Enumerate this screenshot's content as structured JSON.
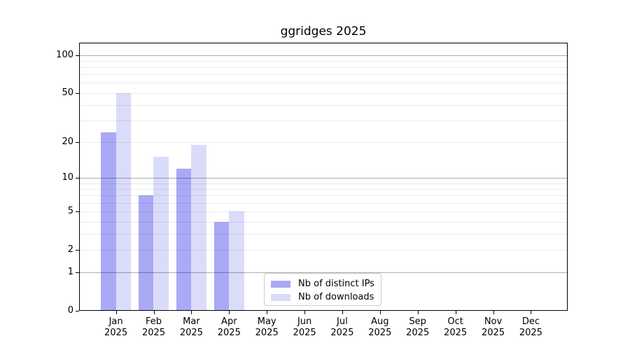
{
  "title": "ggridges 2025",
  "chart_data": {
    "type": "bar",
    "title": "ggridges 2025",
    "y_scale": "log1p",
    "ylim": [
      0,
      125
    ],
    "grid": true,
    "categories": [
      "Jan 2025",
      "Feb 2025",
      "Mar 2025",
      "Apr 2025",
      "May 2025",
      "Jun 2025",
      "Jul 2025",
      "Aug 2025",
      "Sep 2025",
      "Oct 2025",
      "Nov 2025",
      "Dec 2025"
    ],
    "series": [
      {
        "name": "Nb of distinct IPs",
        "color": "#a9a9f6",
        "values": [
          24,
          7,
          12,
          4,
          null,
          null,
          null,
          null,
          null,
          null,
          null,
          null
        ]
      },
      {
        "name": "Nb of downloads",
        "color": "#dbdbfa",
        "values": [
          50,
          15,
          19,
          5,
          null,
          null,
          null,
          null,
          null,
          null,
          null,
          null
        ]
      }
    ],
    "y_ticks": [
      0,
      1,
      2,
      5,
      10,
      20,
      50,
      100
    ],
    "y_major_grid": [
      1,
      10,
      100
    ],
    "y_minor_grid": [
      2,
      3,
      4,
      5,
      6,
      7,
      8,
      9,
      20,
      30,
      40,
      50,
      60,
      70,
      80,
      90
    ],
    "legend": {
      "labels": [
        "Nb of distinct IPs",
        "Nb of downloads"
      ],
      "position": "lower-center"
    }
  },
  "colors": {
    "background": "#ffffff",
    "bar_distinct_ips": "#a9a9f6",
    "bar_downloads": "#dbdbfa",
    "grid_major": "#b0b0b0",
    "grid_minor": "#ebebeb",
    "legend_border": "#cccccc",
    "axis": "#000000"
  }
}
